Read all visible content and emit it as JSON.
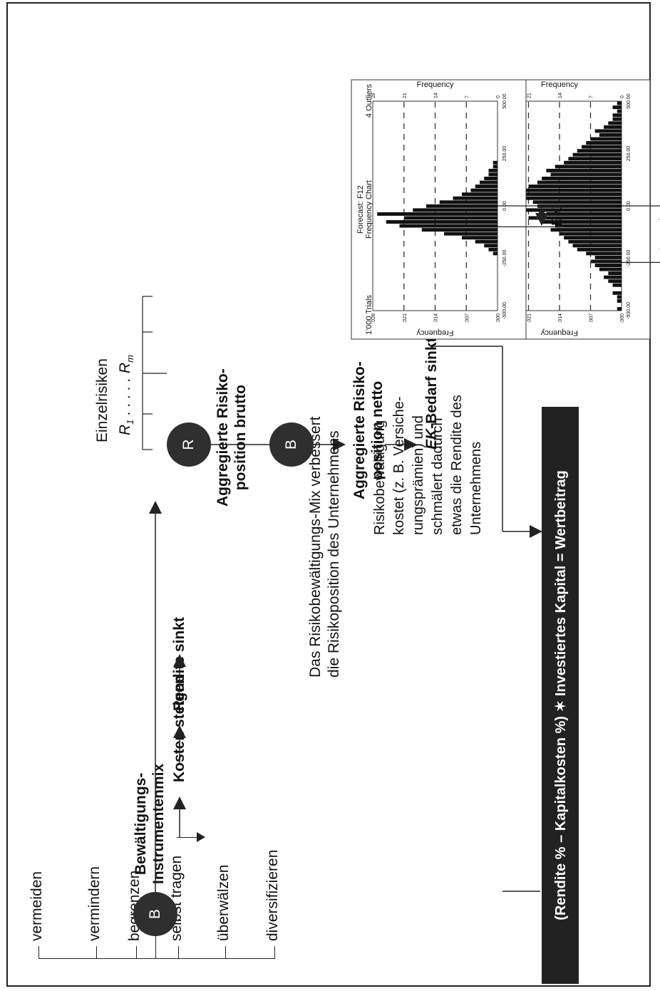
{
  "instruments": {
    "items": [
      "vermeiden",
      "vermindern",
      "begrenzen",
      "selbst tragen",
      "überwälzen",
      "diversifizieren"
    ],
    "circle_label": "B",
    "title_line1": "Bewältigungs-",
    "title_line2": "Instrumentenmix"
  },
  "left_flow": {
    "kosten": "Kosten steigen",
    "rendite": "Rendite sinkt"
  },
  "middle_text": {
    "mix_note_line1": "Das Risikobewältigungs-Mix verbessert",
    "mix_note_line2": "die Risikoposition des Unternehmens",
    "cost_note": "Risikobewältigung\nkostet (z. B. Versiche-\nrungsprämien) und\nschmälert dadurch\netwas die Rendite des\nUnternehmens"
  },
  "right_flow": {
    "einzelrisiken": "Einzelrisiken",
    "r1": "R",
    "r1_sub": "1",
    "dots": ". . . . .",
    "rm": "R",
    "rm_sub": "m",
    "circle_r": "R",
    "brutto_line1": "Aggregierte Risiko-",
    "brutto_line2": "position brutto",
    "circle_b": "B",
    "netto_line1": "Aggregierte Risiko-",
    "netto_line2": "position netto",
    "ek_sinkt_prefix": "EK",
    "ek_sinkt_suffix": "-Bedarf sinkt"
  },
  "formula": "(Rendite % – Kapitalkosten %) ✶ Investiertes Kapital = Wertbeitrag",
  "chart_data": [
    {
      "type": "bar",
      "title": "Forecast: F12",
      "subtitle": "Frequency Chart",
      "trials": "1'000 Trials",
      "outliers": "4 Outliers",
      "ylabel_left": "Frequency",
      "ylabel_right": "Frequency",
      "x_ticks": [
        "-500.00",
        "-250.00",
        "0.00",
        "250.00",
        "500.00"
      ],
      "y_ticks_left": ".000",
      "y_ticks": [
        ".000",
        ".007",
        ".014",
        ".021",
        ".028"
      ],
      "y_ticks_right": [
        "0",
        "7",
        "14",
        "21",
        "28"
      ],
      "xlim": [
        -500,
        500
      ],
      "ylim": [
        0,
        28
      ],
      "values": [
        1,
        0,
        1,
        1,
        2,
        0,
        2,
        3,
        4,
        3,
        5,
        6,
        7,
        6,
        8,
        10,
        11,
        12,
        13,
        14,
        16,
        15,
        18,
        21,
        17,
        23,
        19,
        20,
        22,
        25,
        24,
        21,
        19,
        18,
        16,
        17,
        15,
        13,
        12,
        11,
        10,
        9,
        8,
        7,
        5,
        6,
        4,
        3,
        2,
        2,
        1,
        2,
        1
      ],
      "annotation": "EK-Bedarf",
      "annotation_prefix": "EK",
      "annotation_suffix": "-Bedarf"
    },
    {
      "type": "bar",
      "title": "Forecast: F12",
      "subtitle": "Frequency Chart",
      "trials": "1'000 Trials",
      "outliers": "4 Outliers",
      "ylabel_left": "Frequency",
      "ylabel_right": "Frequency",
      "x_ticks": [
        "-500.00",
        "-250.00",
        "0.00",
        "250.00",
        "500.00"
      ],
      "y_ticks": [
        ".000",
        ".007",
        ".014",
        ".021",
        ".028"
      ],
      "y_ticks_right": [
        "0",
        "7",
        "14",
        "21",
        "28"
      ],
      "xlim": [
        -500,
        500
      ],
      "ylim": [
        0,
        28
      ],
      "values": [
        0,
        0,
        0,
        0,
        0,
        0,
        0,
        0,
        0,
        0,
        0,
        0,
        0,
        0,
        1,
        2,
        3,
        5,
        8,
        12,
        17,
        22,
        25,
        21,
        27,
        19,
        16,
        13,
        10,
        8,
        6,
        5,
        4,
        3,
        2,
        2,
        1,
        1,
        0,
        0,
        0,
        0,
        0,
        0,
        0,
        0,
        0,
        0,
        0,
        0,
        0,
        0,
        0
      ],
      "annotation": "EK"
    }
  ]
}
